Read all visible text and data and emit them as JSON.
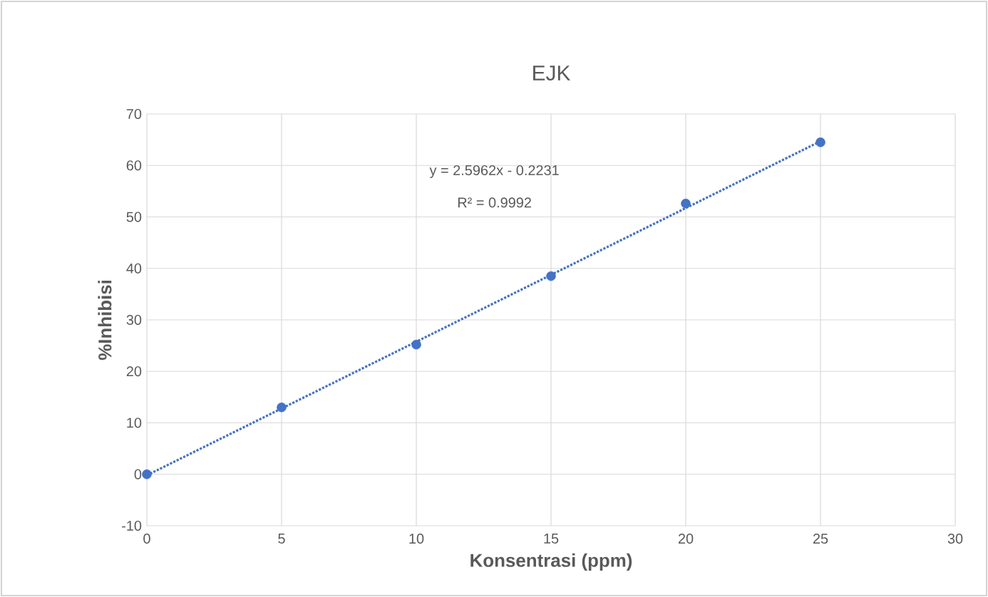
{
  "chart_data": {
    "type": "scatter",
    "title": "EJK",
    "xlabel": "Konsentrasi (ppm)",
    "ylabel": "%Inhibisi",
    "xlim": [
      0,
      30
    ],
    "xticks": [
      0,
      5,
      10,
      15,
      20,
      25,
      30
    ],
    "ylim": [
      -10,
      70
    ],
    "yticks": [
      -10,
      0,
      10,
      20,
      30,
      40,
      50,
      60,
      70
    ],
    "grid": true,
    "marker": "circle",
    "series": [
      {
        "color": "#4472c4",
        "x": [
          0,
          5,
          10,
          15,
          20,
          25
        ],
        "values": [
          0,
          13,
          25.2,
          38.5,
          52.6,
          64.5
        ]
      },
      {
        "type": "line",
        "color": "#4472c4",
        "line_style": "dotted",
        "marker": "none",
        "x": [
          0,
          25
        ],
        "values": [
          -0.2,
          64.7
        ]
      }
    ],
    "annotations": [
      "y = 2.5962x - 0.2231",
      "R² = 0.9992"
    ]
  }
}
